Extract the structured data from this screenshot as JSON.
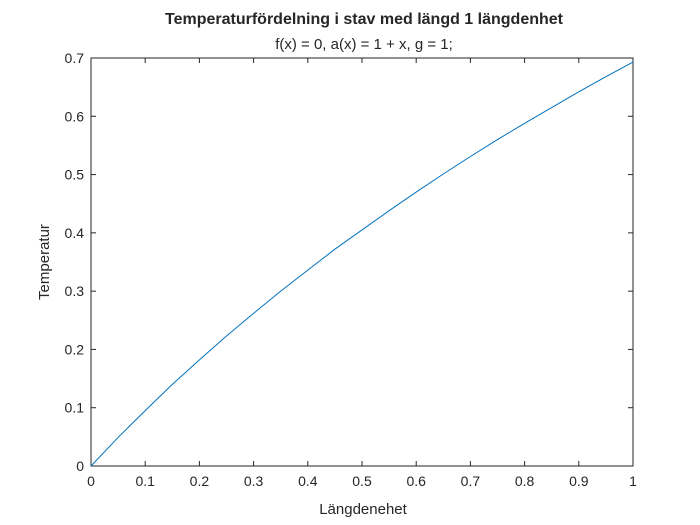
{
  "chart_data": {
    "type": "line",
    "title": "Temperaturfördelning i stav med längd 1 längdenhet",
    "subtitle": "f(x) = 0, a(x) = 1 + x, g = 1;",
    "xlabel": "Längdenehet",
    "ylabel": "Temperatur",
    "xlim": [
      0,
      1
    ],
    "ylim": [
      0,
      0.7
    ],
    "x_ticks": [
      0,
      0.1,
      0.2,
      0.3,
      0.4,
      0.5,
      0.6,
      0.7,
      0.8,
      0.9,
      1
    ],
    "x_tick_labels": [
      "0",
      "0.1",
      "0.2",
      "0.3",
      "0.4",
      "0.5",
      "0.6",
      "0.7",
      "0.8",
      "0.9",
      "1"
    ],
    "y_ticks": [
      0,
      0.1,
      0.2,
      0.3,
      0.4,
      0.5,
      0.6,
      0.7
    ],
    "y_tick_labels": [
      "0",
      "0.1",
      "0.2",
      "0.3",
      "0.4",
      "0.5",
      "0.6",
      "0.7"
    ],
    "grid": false,
    "box": true,
    "series": [
      {
        "color": "#0072BD",
        "x": [
          0,
          0.05,
          0.1,
          0.15,
          0.2,
          0.25,
          0.3,
          0.35,
          0.4,
          0.45,
          0.5,
          0.55,
          0.6,
          0.65,
          0.7,
          0.75,
          0.8,
          0.85,
          0.9,
          0.95,
          1
        ],
        "y": [
          0,
          0.049,
          0.095,
          0.14,
          0.182,
          0.223,
          0.262,
          0.3,
          0.336,
          0.372,
          0.405,
          0.438,
          0.47,
          0.501,
          0.531,
          0.56,
          0.588,
          0.615,
          0.642,
          0.668,
          0.693
        ]
      }
    ]
  }
}
